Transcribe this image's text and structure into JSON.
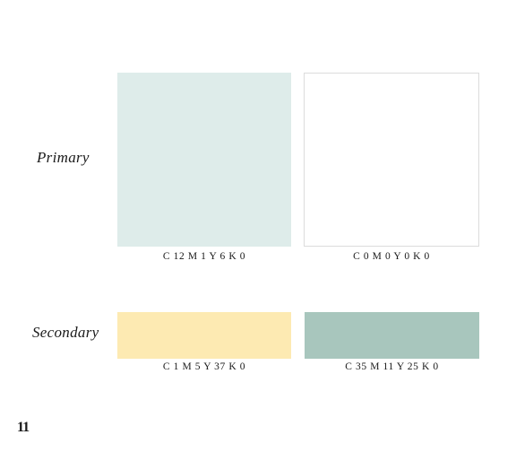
{
  "rows": {
    "primary": {
      "label": "Primary",
      "swatches": [
        {
          "code": "C 12   M 1   Y 6   K 0",
          "color": "#deecea"
        },
        {
          "code": "C 0   M 0   Y 0   K 0",
          "color": "#ffffff"
        }
      ]
    },
    "secondary": {
      "label": "Secondary",
      "swatches": [
        {
          "code": "C 1   M 5   Y 37   K 0",
          "color": "#fdeab2"
        },
        {
          "code": "C 35   M 11   Y 25   K 0",
          "color": "#a8c6bd"
        }
      ]
    }
  },
  "page_number": "11"
}
